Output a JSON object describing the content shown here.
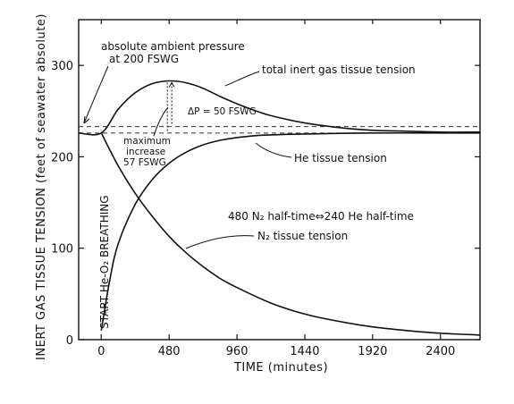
{
  "chart_data": {
    "type": "line",
    "xlabel": "TIME (minutes)",
    "ylabel": "INERT GAS TISSUE TENSION (feet of seawater absolute)",
    "xlim": [
      -160,
      2680
    ],
    "ylim": [
      0,
      350
    ],
    "x_ticks": [
      "0",
      "480",
      "960",
      "1440",
      "1920",
      "2400"
    ],
    "y_ticks": [
      "0",
      "100",
      "200",
      "300"
    ],
    "grid": false,
    "reference_lines": [
      {
        "value": 233,
        "style": "dashed"
      },
      {
        "value": 226,
        "style": "dashed"
      }
    ],
    "series": [
      {
        "x": [
          -160,
          0,
          120,
          240,
          360,
          480,
          600,
          720,
          840,
          960,
          1080,
          1200,
          1440,
          1680,
          1920,
          2160,
          2400,
          2680
        ],
        "y": [
          226,
          226,
          252,
          270,
          280,
          283,
          281,
          275,
          266,
          258,
          251,
          245,
          237,
          232,
          229,
          228,
          227,
          227
        ]
      },
      {
        "x": [
          0,
          60,
          120,
          240,
          360,
          480,
          600,
          720,
          840,
          960,
          1080,
          1200,
          1440,
          1920,
          2400,
          2680
        ],
        "y": [
          10,
          65,
          105,
          148,
          175,
          193,
          205,
          213,
          218,
          221,
          223,
          224,
          225,
          226,
          226,
          226
        ]
      },
      {
        "x": [
          0,
          120,
          240,
          360,
          480,
          600,
          720,
          840,
          960,
          1200,
          1440,
          1680,
          1920,
          2160,
          2400,
          2680
        ],
        "y": [
          226,
          190,
          160,
          135,
          113,
          95,
          80,
          67,
          57,
          40,
          28,
          20,
          14,
          10,
          7,
          5
        ]
      }
    ],
    "annotations": {
      "ambient": "absolute ambient pressure",
      "ambient2": "at 200 FSWG",
      "total": "total inert gas tissue tension",
      "delta": "ΔP = 50 FSWG",
      "max1": "maximum",
      "max2": "increase",
      "max3": "57 FSWG",
      "he": "He tissue tension",
      "halftime": "480 N₂ half-time⇔240 He half-time",
      "n2": "N₂  tissue tension",
      "start": "START He-O₂ BREATHING"
    }
  }
}
